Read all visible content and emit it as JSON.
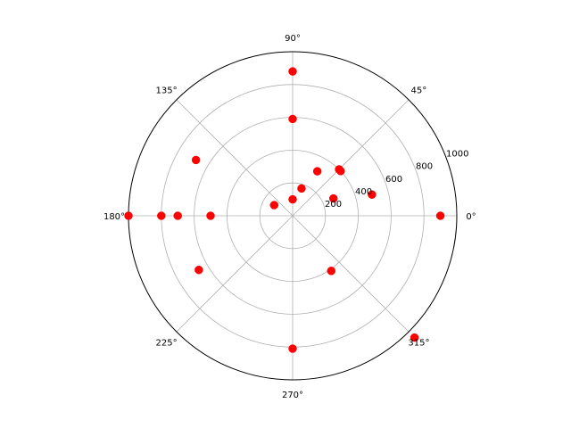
{
  "colors": {
    "marker": "#ff0000",
    "grid": "#b0b0b0",
    "spine": "#000000",
    "background": "#ffffff"
  },
  "chart_data": {
    "type": "scatter",
    "projection": "polar",
    "grid": true,
    "theta_unit": "degrees",
    "r_range": [
      0,
      1000
    ],
    "r_ticks": [
      200,
      400,
      600,
      800,
      1000
    ],
    "r_tick_labels": [
      "200",
      "400",
      "600",
      "800",
      "1000"
    ],
    "theta_ticks": [
      0,
      45,
      90,
      135,
      180,
      225,
      270,
      315
    ],
    "theta_tick_labels": [
      "0°",
      "45°",
      "90°",
      "135°",
      "180°",
      "225°",
      "270°",
      "315°"
    ],
    "points": [
      {
        "theta": 0,
        "r": 900
      },
      {
        "theta": 15,
        "r": 500
      },
      {
        "theta": 23,
        "r": 270
      },
      {
        "theta": 43,
        "r": 400
      },
      {
        "theta": 45,
        "r": 400
      },
      {
        "theta": 61,
        "r": 310
      },
      {
        "theta": 72,
        "r": 175
      },
      {
        "theta": 90,
        "r": 590
      },
      {
        "theta": 90,
        "r": 880
      },
      {
        "theta": 90,
        "r": 100
      },
      {
        "theta": 150,
        "r": 130
      },
      {
        "theta": 150,
        "r": 680
      },
      {
        "theta": 180,
        "r": 500
      },
      {
        "theta": 180,
        "r": 700
      },
      {
        "theta": 180,
        "r": 800
      },
      {
        "theta": 180,
        "r": 1000
      },
      {
        "theta": 210,
        "r": 660
      },
      {
        "theta": 270,
        "r": 810
      },
      {
        "theta": 305,
        "r": 410
      },
      {
        "theta": 315,
        "r": 1050
      }
    ]
  }
}
